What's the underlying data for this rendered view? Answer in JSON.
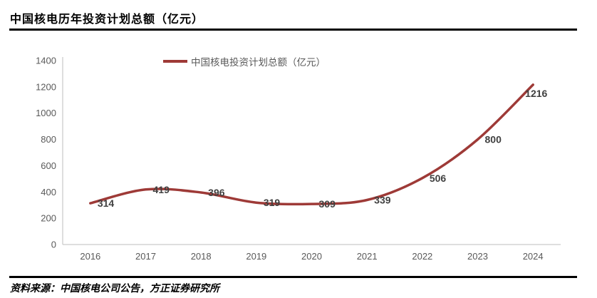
{
  "header": {
    "title": "中国核电历年投资计划总额（亿元）"
  },
  "legend": {
    "label": "中国核电投资计划总额（亿元）",
    "swatch_color": "#9e3a37"
  },
  "footer": {
    "source": "资料来源：中国核电公司公告，方正证券研究所"
  },
  "chart_data": {
    "type": "line",
    "title": "中国核电历年投资计划总额（亿元）",
    "categories": [
      "2016",
      "2017",
      "2018",
      "2019",
      "2020",
      "2021",
      "2022",
      "2023",
      "2024"
    ],
    "series": [
      {
        "name": "中国核电投资计划总额（亿元）",
        "values": [
          314,
          419,
          396,
          319,
          309,
          339,
          506,
          800,
          1216
        ]
      }
    ],
    "xlabel": "",
    "ylabel": "",
    "ylim": [
      0,
      1400
    ],
    "ytick_step": 200,
    "grid": false,
    "legend_position": "top",
    "smooth": true,
    "data_labels": true,
    "colors": {
      "line": "#9e3a37",
      "axis_line": "#c9c9c9",
      "axis_text": "#595959",
      "data_label": "#404040"
    }
  }
}
